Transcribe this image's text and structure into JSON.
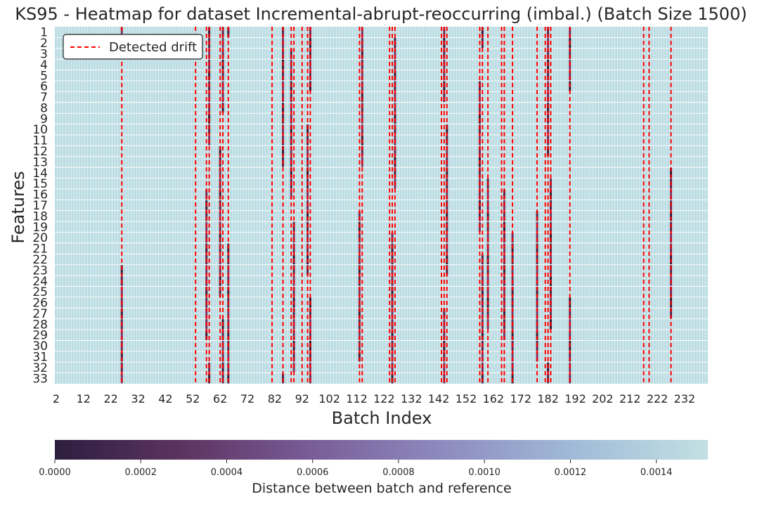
{
  "chart_data": {
    "type": "heatmap",
    "title": "KS95 - Heatmap for dataset Incremental-abrupt-reoccurring (imbal.) (Batch Size 1500)",
    "xlabel": "Batch Index",
    "ylabel": "Features",
    "x_range": [
      2,
      240
    ],
    "x_ticks": [
      "2",
      "12",
      "22",
      "32",
      "42",
      "52",
      "62",
      "72",
      "82",
      "92",
      "102",
      "112",
      "122",
      "132",
      "142",
      "152",
      "162",
      "172",
      "182",
      "192",
      "202",
      "212",
      "222",
      "232"
    ],
    "y_ticks": [
      "1",
      "2",
      "3",
      "4",
      "5",
      "6",
      "7",
      "8",
      "9",
      "10",
      "11",
      "12",
      "13",
      "14",
      "15",
      "16",
      "17",
      "18",
      "19",
      "20",
      "21",
      "22",
      "23",
      "24",
      "25",
      "26",
      "27",
      "28",
      "29",
      "30",
      "31",
      "32",
      "33"
    ],
    "background_color": "#bcdde3",
    "grid_color": "#ffffff",
    "drift_line_color": "#ff0000",
    "legend": {
      "label": "Detected drift",
      "placement": "top-left"
    },
    "detected_drift_batches": [
      26,
      53,
      57,
      58,
      62,
      63,
      65,
      81,
      85,
      88,
      89,
      92,
      94,
      95,
      113,
      114,
      124,
      125,
      126,
      143,
      144,
      145,
      157,
      158,
      160,
      165,
      166,
      169,
      178,
      181,
      182,
      183,
      190,
      217,
      219,
      227
    ],
    "low_distance_batches": [
      26,
      57,
      58,
      62,
      63,
      65,
      85,
      88,
      89,
      94,
      95,
      113,
      114,
      125,
      126,
      144,
      145,
      157,
      158,
      160,
      166,
      169,
      178,
      182,
      183,
      190,
      227
    ],
    "colorbar": {
      "label": "Distance between batch and reference",
      "min": 0.0,
      "max": 0.00152,
      "ticks": [
        "0.0000",
        "0.0002",
        "0.0004",
        "0.0006",
        "0.0008",
        "0.0010",
        "0.0012",
        "0.0014"
      ],
      "tick_values": [
        0.0,
        0.0002,
        0.0004,
        0.0006,
        0.0008,
        0.001,
        0.0012,
        0.0014
      ],
      "colors": [
        "#2d1e3e",
        "#5e3461",
        "#7a5e9a",
        "#8e8cc0",
        "#a1bcd8",
        "#c2e0e3"
      ]
    }
  }
}
